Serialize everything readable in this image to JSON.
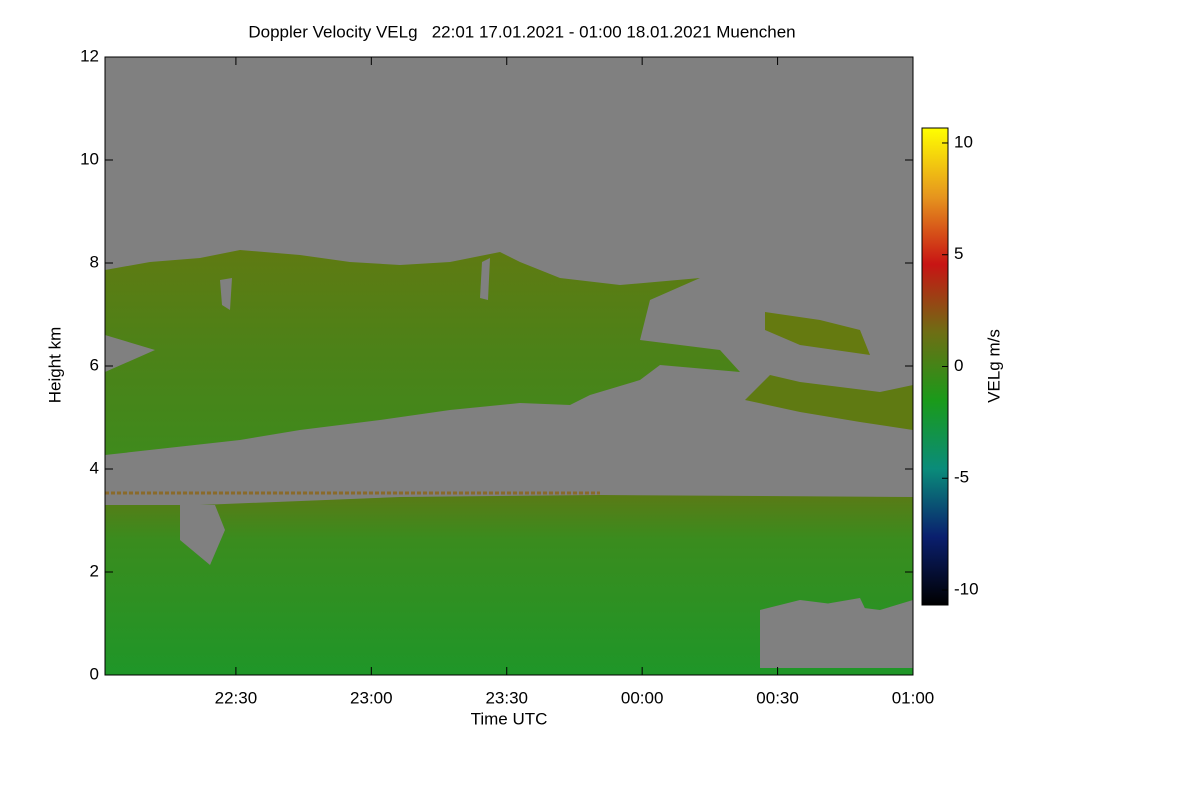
{
  "chart_data": {
    "type": "time-height",
    "title": "Doppler Velocity VELg   22:01 17.01.2021 - 01:00 18.01.2021 Muenchen",
    "x_label": "Time UTC",
    "y_label": "Height km",
    "colorbar_label": "VELg m/s",
    "xlim": [
      1,
      180
    ],
    "xticks": [
      {
        "value": 30,
        "label": "22:30"
      },
      {
        "value": 60,
        "label": "23:00"
      },
      {
        "value": 90,
        "label": "23:30"
      },
      {
        "value": 120,
        "label": "00:00"
      },
      {
        "value": 150,
        "label": "00:30"
      },
      {
        "value": 180,
        "label": "01:00"
      }
    ],
    "ylim": [
      0,
      12
    ],
    "yticks": [
      0,
      2,
      4,
      6,
      8,
      10,
      12
    ],
    "clim": [
      -10.67,
      10.67
    ],
    "cticks": [
      -10,
      -5,
      0,
      5,
      10
    ],
    "colormap": [
      "#000000",
      "#0a1f6e",
      "#0a8c7a",
      "#1a9a1a",
      "#6e6e14",
      "#c81414",
      "#e6961e",
      "#ffff00"
    ],
    "background_color": "#808080"
  }
}
